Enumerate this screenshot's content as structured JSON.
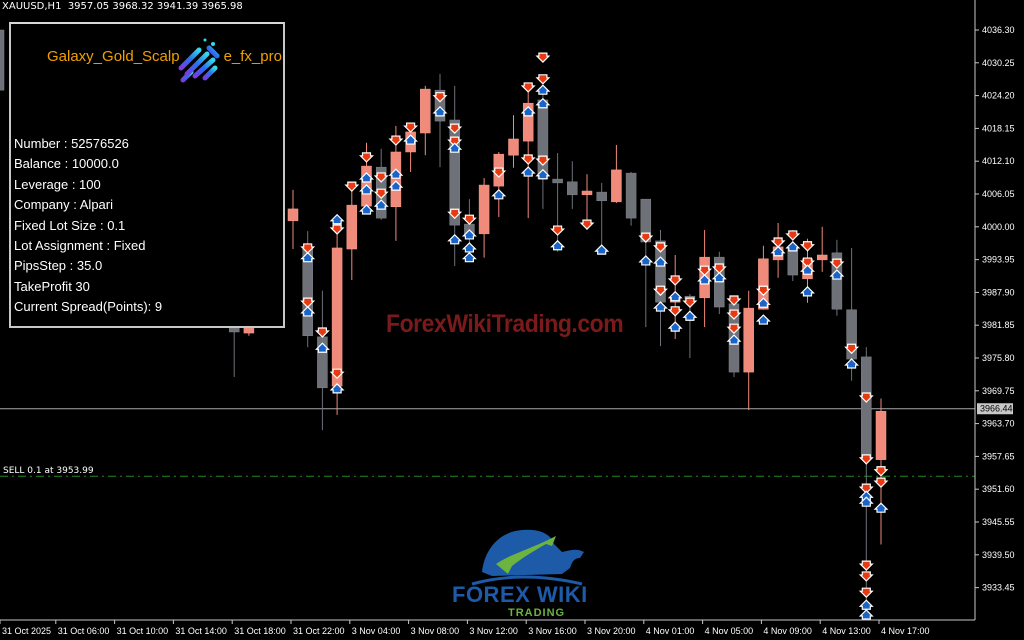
{
  "header": {
    "symbol": "XAUUSD,H1",
    "ohlc": "3957.05 3968.32 3941.39 3965.98"
  },
  "panel": {
    "title_left": "Galaxy_Gold_Scalp",
    "title_right": "e_fx_pro",
    "icon": "galaxy-stripes-logo-icon",
    "lines": [
      "Number : 52576526",
      "Balance : 10000.0",
      "Leverage : 100",
      "Company : Alpari",
      "Fixed Lot Size : 0.1",
      "Lot Assignment : Fixed",
      "PipsStep : 35.0",
      "TakeProfit 30",
      "Current Spread(Points): 9"
    ]
  },
  "watermark": "ForexWikiTrading.com",
  "logo": {
    "line1": "FOREX WIKI",
    "line2": "TRADING",
    "colors": {
      "blue": "#1d5aa8",
      "green": "#6cb33f"
    }
  },
  "order_line": {
    "label": "SELL 0.1 at 3953.99",
    "price": 3953.99,
    "color": "#1f8a1f"
  },
  "bid_line": {
    "label": "3966.44",
    "price": 3966.44
  },
  "colors": {
    "bull": "#f08a7a",
    "bear": "#6e7278",
    "background": "#000000",
    "sell_marker": "#e83a12",
    "buy_marker": "#1a64c8"
  },
  "chart_data": {
    "type": "candlestick",
    "symbol": "XAUUSD",
    "timeframe": "H1",
    "ylim": [
      3927.0,
      4038.0
    ],
    "y_ticks": [
      "4036.30",
      "4030.25",
      "4024.20",
      "4018.15",
      "4012.10",
      "4006.05",
      "4000.00",
      "3993.95",
      "3987.90",
      "3981.85",
      "3975.80",
      "3969.75",
      "3963.70",
      "3957.65",
      "3951.60",
      "3945.55",
      "3939.50",
      "3933.45"
    ],
    "x_ticks": [
      "31 Oct 2025",
      "31 Oct 06:00",
      "31 Oct 10:00",
      "31 Oct 14:00",
      "31 Oct 18:00",
      "31 Oct 22:00",
      "3 Nov 04:00",
      "3 Nov 08:00",
      "3 Nov 12:00",
      "3 Nov 16:00",
      "3 Nov 20:00",
      "4 Nov 01:00",
      "4 Nov 05:00",
      "4 Nov 09:00",
      "4 Nov 13:00",
      "4 Nov 17:00"
    ],
    "candles": [
      {
        "i": -20,
        "o": 4036.3,
        "h": 4036.6,
        "l": 4024.3,
        "c": 4025.2
      },
      {
        "i": -4,
        "o": 3981.5,
        "h": 3982.8,
        "l": 3972.3,
        "c": 3980.6
      },
      {
        "i": -3,
        "o": 3980.4,
        "h": 3981.5,
        "l": 3979.9,
        "c": 3981.5
      },
      {
        "i": 0,
        "o": 4001.1,
        "h": 4006.8,
        "l": 3995.9,
        "c": 4003.3
      },
      {
        "i": 1,
        "o": 3995.9,
        "h": 3999.2,
        "l": 3977.8,
        "c": 3979.9
      },
      {
        "i": 2,
        "o": 3979.7,
        "h": 3988.2,
        "l": 3962.5,
        "c": 3970.3
      },
      {
        "i": 3,
        "o": 3970.6,
        "h": 4001.6,
        "l": 3965.3,
        "c": 3996.1
      },
      {
        "i": 4,
        "o": 3995.9,
        "h": 4008.1,
        "l": 3990.2,
        "c": 4004.0
      },
      {
        "i": 5,
        "o": 4003.8,
        "h": 4015.5,
        "l": 4002.7,
        "c": 4011.2
      },
      {
        "i": 6,
        "o": 4011.0,
        "h": 4014.4,
        "l": 4001.3,
        "c": 4001.6
      },
      {
        "i": 7,
        "o": 4003.7,
        "h": 4018.6,
        "l": 3997.4,
        "c": 4013.8
      },
      {
        "i": 8,
        "o": 4013.8,
        "h": 4018.8,
        "l": 4010.1,
        "c": 4017.5
      },
      {
        "i": 9,
        "o": 4017.3,
        "h": 4026.0,
        "l": 4013.2,
        "c": 4025.4
      },
      {
        "i": 10,
        "o": 4025.2,
        "h": 4028.2,
        "l": 4011.0,
        "c": 4019.5
      },
      {
        "i": 11,
        "o": 4019.7,
        "h": 4026.0,
        "l": 3992.8,
        "c": 4000.3
      },
      {
        "i": 12,
        "o": 4000.5,
        "h": 4005.1,
        "l": 3993.5,
        "c": 3998.3
      },
      {
        "i": 13,
        "o": 3998.7,
        "h": 4009.0,
        "l": 3994.3,
        "c": 4007.7
      },
      {
        "i": 14,
        "o": 4007.5,
        "h": 4013.8,
        "l": 4001.8,
        "c": 4013.4
      },
      {
        "i": 15,
        "o": 4013.2,
        "h": 4020.6,
        "l": 4010.9,
        "c": 4016.2
      },
      {
        "i": 16,
        "o": 4015.8,
        "h": 4026.2,
        "l": 4001.6,
        "c": 4022.8
      },
      {
        "i": 17,
        "o": 4023.4,
        "h": 4025.2,
        "l": 4003.3,
        "c": 4008.8
      },
      {
        "i": 18,
        "o": 4008.8,
        "h": 4013.6,
        "l": 3995.4,
        "c": 4008.1
      },
      {
        "i": 19,
        "o": 4008.3,
        "h": 4012.1,
        "l": 4003.3,
        "c": 4005.9
      },
      {
        "i": 20,
        "o": 4005.9,
        "h": 4009.7,
        "l": 4000.7,
        "c": 4006.6
      },
      {
        "i": 21,
        "o": 4006.4,
        "h": 4008.1,
        "l": 3995.7,
        "c": 4004.8
      },
      {
        "i": 22,
        "o": 4004.6,
        "h": 4015.1,
        "l": 4004.4,
        "c": 4010.5
      },
      {
        "i": 23,
        "o": 4009.9,
        "h": 4010.1,
        "l": 4000.2,
        "c": 4001.6
      },
      {
        "i": 24,
        "o": 4005.1,
        "h": 4005.1,
        "l": 3981.5,
        "c": 3997.2
      },
      {
        "i": 25,
        "o": 3997.4,
        "h": 3999.4,
        "l": 3978.0,
        "c": 3986.1
      },
      {
        "i": 26,
        "o": 3986.1,
        "h": 3994.8,
        "l": 3979.3,
        "c": 3987.2
      },
      {
        "i": 27,
        "o": 3987.2,
        "h": 3987.6,
        "l": 3975.8,
        "c": 3986.7
      },
      {
        "i": 28,
        "o": 3986.9,
        "h": 3999.4,
        "l": 3981.5,
        "c": 3994.4
      },
      {
        "i": 29,
        "o": 3994.4,
        "h": 3995.4,
        "l": 3983.9,
        "c": 3985.2
      },
      {
        "i": 30,
        "o": 3985.8,
        "h": 3987.1,
        "l": 3972.3,
        "c": 3973.2
      },
      {
        "i": 31,
        "o": 3973.2,
        "h": 3988.2,
        "l": 3966.2,
        "c": 3985.0
      },
      {
        "i": 32,
        "o": 3984.8,
        "h": 3996.5,
        "l": 3984.7,
        "c": 3994.1
      },
      {
        "i": 33,
        "o": 3993.9,
        "h": 4000.7,
        "l": 3990.6,
        "c": 3996.3
      },
      {
        "i": 34,
        "o": 3996.1,
        "h": 3999.4,
        "l": 3990.0,
        "c": 3991.1
      },
      {
        "i": 35,
        "o": 3990.4,
        "h": 3997.8,
        "l": 3986.0,
        "c": 3994.1
      },
      {
        "i": 36,
        "o": 3993.9,
        "h": 4000.0,
        "l": 3991.7,
        "c": 3994.8
      },
      {
        "i": 37,
        "o": 3995.2,
        "h": 3997.6,
        "l": 3983.6,
        "c": 3984.8
      },
      {
        "i": 38,
        "o": 3984.7,
        "h": 3996.1,
        "l": 3971.6,
        "c": 3975.6
      },
      {
        "i": 39,
        "o": 3976.0,
        "h": 3977.8,
        "l": 3927.5,
        "c": 3957.1
      },
      {
        "i": 40,
        "o": 3957.05,
        "h": 3968.32,
        "l": 3941.39,
        "c": 3965.98
      }
    ],
    "markers": [
      [
        1,
        3996.1,
        "sell"
      ],
      [
        1,
        3994.3,
        "buy"
      ],
      [
        1,
        3986.1,
        "sell"
      ],
      [
        1,
        3984.3,
        "buy"
      ],
      [
        2,
        3980.6,
        "sell"
      ],
      [
        2,
        3977.6,
        "buy"
      ],
      [
        3,
        4001.3,
        "buy"
      ],
      [
        3,
        3999.6,
        "sell"
      ],
      [
        3,
        3973.0,
        "sell"
      ],
      [
        3,
        3970.1,
        "buy"
      ],
      [
        4,
        4007.5,
        "sell"
      ],
      [
        5,
        4012.9,
        "sell"
      ],
      [
        5,
        4009.0,
        "buy"
      ],
      [
        5,
        4006.8,
        "buy"
      ],
      [
        5,
        4003.1,
        "buy"
      ],
      [
        6,
        4009.2,
        "sell"
      ],
      [
        6,
        4006.2,
        "sell"
      ],
      [
        6,
        4004.0,
        "buy"
      ],
      [
        7,
        4016.0,
        "sell"
      ],
      [
        7,
        4009.7,
        "buy"
      ],
      [
        7,
        4007.5,
        "buy"
      ],
      [
        8,
        4018.4,
        "sell"
      ],
      [
        8,
        4016.0,
        "buy"
      ],
      [
        10,
        4024.0,
        "sell"
      ],
      [
        10,
        4021.2,
        "buy"
      ],
      [
        11,
        4018.2,
        "sell"
      ],
      [
        11,
        4015.8,
        "sell"
      ],
      [
        11,
        4014.5,
        "buy"
      ],
      [
        11,
        4002.5,
        "sell"
      ],
      [
        11,
        3997.6,
        "buy"
      ],
      [
        12,
        4001.4,
        "sell"
      ],
      [
        12,
        3998.5,
        "buy"
      ],
      [
        12,
        3996.1,
        "buy"
      ],
      [
        12,
        3994.3,
        "buy"
      ],
      [
        14,
        4010.1,
        "sell"
      ],
      [
        14,
        4005.9,
        "buy"
      ],
      [
        16,
        4025.8,
        "sell"
      ],
      [
        16,
        4021.2,
        "buy"
      ],
      [
        16,
        4012.5,
        "sell"
      ],
      [
        16,
        4010.1,
        "buy"
      ],
      [
        17,
        4031.3,
        "sell"
      ],
      [
        17,
        4027.3,
        "sell"
      ],
      [
        17,
        4025.2,
        "buy"
      ],
      [
        17,
        4022.7,
        "buy"
      ],
      [
        17,
        4012.3,
        "sell"
      ],
      [
        17,
        4009.6,
        "buy"
      ],
      [
        18,
        3999.4,
        "sell"
      ],
      [
        18,
        3996.5,
        "buy"
      ],
      [
        20,
        4000.5,
        "sell"
      ],
      [
        21,
        3995.7,
        "buy"
      ],
      [
        24,
        3998.1,
        "sell"
      ],
      [
        24,
        3993.7,
        "buy"
      ],
      [
        25,
        3996.3,
        "sell"
      ],
      [
        25,
        3993.5,
        "buy"
      ],
      [
        25,
        3988.3,
        "sell"
      ],
      [
        25,
        3985.2,
        "buy"
      ],
      [
        26,
        3990.2,
        "sell"
      ],
      [
        26,
        3987.1,
        "buy"
      ],
      [
        26,
        3984.5,
        "sell"
      ],
      [
        26,
        3981.5,
        "buy"
      ],
      [
        27,
        3986.1,
        "sell"
      ],
      [
        27,
        3983.5,
        "buy"
      ],
      [
        28,
        3992.0,
        "sell"
      ],
      [
        28,
        3990.2,
        "buy"
      ],
      [
        29,
        3992.4,
        "sell"
      ],
      [
        29,
        3990.6,
        "buy"
      ],
      [
        30,
        3986.5,
        "sell"
      ],
      [
        30,
        3983.9,
        "sell"
      ],
      [
        30,
        3981.3,
        "sell"
      ],
      [
        30,
        3979.1,
        "buy"
      ],
      [
        32,
        3988.3,
        "sell"
      ],
      [
        32,
        3985.9,
        "buy"
      ],
      [
        32,
        3982.8,
        "buy"
      ],
      [
        33,
        3997.2,
        "sell"
      ],
      [
        33,
        3995.4,
        "buy"
      ],
      [
        34,
        3998.5,
        "sell"
      ],
      [
        34,
        3996.3,
        "buy"
      ],
      [
        35,
        3996.5,
        "sell"
      ],
      [
        35,
        3993.5,
        "sell"
      ],
      [
        35,
        3992.0,
        "buy"
      ],
      [
        35,
        3988.0,
        "buy"
      ],
      [
        37,
        3993.3,
        "sell"
      ],
      [
        37,
        3991.1,
        "buy"
      ],
      [
        38,
        3977.6,
        "sell"
      ],
      [
        38,
        3974.7,
        "buy"
      ],
      [
        39,
        3968.6,
        "sell"
      ],
      [
        39,
        3957.2,
        "sell"
      ],
      [
        39,
        3951.8,
        "sell"
      ],
      [
        39,
        3950.3,
        "buy"
      ],
      [
        39,
        3949.2,
        "buy"
      ],
      [
        39,
        3937.6,
        "sell"
      ],
      [
        39,
        3935.6,
        "sell"
      ],
      [
        39,
        3932.6,
        "sell"
      ],
      [
        39,
        3930.2,
        "buy"
      ],
      [
        39,
        3928.4,
        "buy"
      ],
      [
        40,
        3955.0,
        "sell"
      ],
      [
        40,
        3952.9,
        "sell"
      ],
      [
        40,
        3948.1,
        "buy"
      ]
    ]
  }
}
